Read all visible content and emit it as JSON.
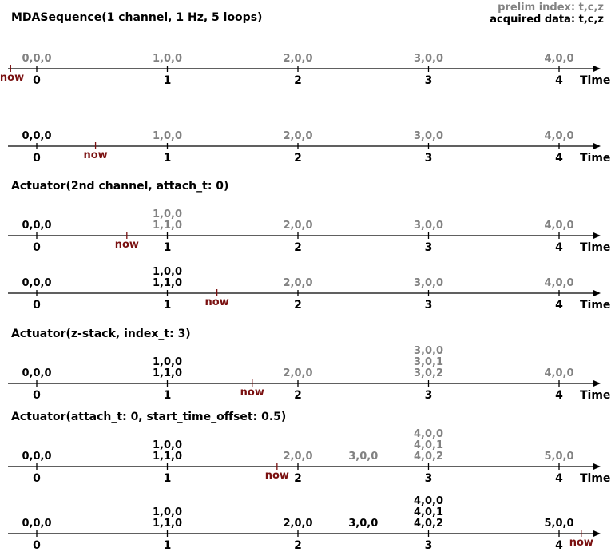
{
  "legend": {
    "prelim": "prelim index: t,c,z",
    "acquired": "acquired data: t,c,z"
  },
  "colors": {
    "prelim": "#828282",
    "acquired": "#000000",
    "now": "#7a1010",
    "axis": "#000000"
  },
  "time_label": "Time",
  "now_label": "now",
  "ticks": [
    "0",
    "1",
    "2",
    "3",
    "4"
  ],
  "rows": [
    {
      "heading": "MDASequence(1 channel, 1 Hz, 5 loops)",
      "show_time": true,
      "now": -0.2,
      "labels": [
        {
          "t": 0,
          "lines": [
            "0,0,0"
          ],
          "state": "prelim"
        },
        {
          "t": 1,
          "lines": [
            "1,0,0"
          ],
          "state": "prelim"
        },
        {
          "t": 2,
          "lines": [
            "2,0,0"
          ],
          "state": "prelim"
        },
        {
          "t": 3,
          "lines": [
            "3,0,0"
          ],
          "state": "prelim"
        },
        {
          "t": 4,
          "lines": [
            "4,0,0"
          ],
          "state": "prelim"
        }
      ]
    },
    {
      "heading": "",
      "show_time": true,
      "now": 0.45,
      "labels": [
        {
          "t": 0,
          "lines": [
            "0,0,0"
          ],
          "state": "acquired"
        },
        {
          "t": 1,
          "lines": [
            "1,0,0"
          ],
          "state": "prelim"
        },
        {
          "t": 2,
          "lines": [
            "2,0,0"
          ],
          "state": "prelim"
        },
        {
          "t": 3,
          "lines": [
            "3,0,0"
          ],
          "state": "prelim"
        },
        {
          "t": 4,
          "lines": [
            "4,0,0"
          ],
          "state": "prelim"
        }
      ]
    },
    {
      "heading": "Actuator(2nd channel, attach_t: 0)",
      "show_time": true,
      "now": 0.69,
      "labels": [
        {
          "t": 0,
          "lines": [
            "0,0,0"
          ],
          "state": "acquired"
        },
        {
          "t": 1,
          "lines": [
            "1,0,0",
            "1,1,0"
          ],
          "state": "prelim"
        },
        {
          "t": 2,
          "lines": [
            "2,0,0"
          ],
          "state": "prelim"
        },
        {
          "t": 3,
          "lines": [
            "3,0,0"
          ],
          "state": "prelim"
        },
        {
          "t": 4,
          "lines": [
            "4,0,0"
          ],
          "state": "prelim"
        }
      ]
    },
    {
      "heading": "",
      "show_time": true,
      "now": 1.38,
      "labels": [
        {
          "t": 0,
          "lines": [
            "0,0,0"
          ],
          "state": "acquired"
        },
        {
          "t": 1,
          "lines": [
            "1,0,0",
            "1,1,0"
          ],
          "state": "acquired"
        },
        {
          "t": 2,
          "lines": [
            "2,0,0"
          ],
          "state": "prelim"
        },
        {
          "t": 3,
          "lines": [
            "3,0,0"
          ],
          "state": "prelim"
        },
        {
          "t": 4,
          "lines": [
            "4,0,0"
          ],
          "state": "prelim"
        }
      ]
    },
    {
      "heading": "Actuator(z-stack, index_t: 3)",
      "show_time": true,
      "now": 1.65,
      "labels": [
        {
          "t": 0,
          "lines": [
            "0,0,0"
          ],
          "state": "acquired"
        },
        {
          "t": 1,
          "lines": [
            "1,0,0",
            "1,1,0"
          ],
          "state": "acquired"
        },
        {
          "t": 2,
          "lines": [
            "2,0,0"
          ],
          "state": "prelim"
        },
        {
          "t": 3,
          "lines": [
            "3,0,0",
            "3,0,1",
            "3,0,2"
          ],
          "state": "prelim"
        },
        {
          "t": 4,
          "lines": [
            "4,0,0"
          ],
          "state": "prelim"
        }
      ]
    },
    {
      "heading": "Actuator(attach_t: 0, start_time_offset: 0.5)",
      "show_time": true,
      "now": 1.84,
      "labels": [
        {
          "t": 0,
          "lines": [
            "0,0,0"
          ],
          "state": "acquired"
        },
        {
          "t": 1,
          "lines": [
            "1,0,0",
            "1,1,0"
          ],
          "state": "acquired"
        },
        {
          "t": 2,
          "lines": [
            "2,0,0"
          ],
          "state": "prelim"
        },
        {
          "t": 2.5,
          "lines": [
            "3,0,0"
          ],
          "state": "prelim"
        },
        {
          "t": 3,
          "lines": [
            "4,0,0",
            "4,0,1",
            "4,0,2"
          ],
          "state": "prelim"
        },
        {
          "t": 4,
          "lines": [
            "5,0,0"
          ],
          "state": "prelim"
        }
      ]
    },
    {
      "heading": "",
      "show_time": false,
      "now": 4.17,
      "labels": [
        {
          "t": 0,
          "lines": [
            "0,0,0"
          ],
          "state": "acquired"
        },
        {
          "t": 1,
          "lines": [
            "1,0,0",
            "1,1,0"
          ],
          "state": "acquired"
        },
        {
          "t": 2,
          "lines": [
            "2,0,0"
          ],
          "state": "acquired"
        },
        {
          "t": 2.5,
          "lines": [
            "3,0,0"
          ],
          "state": "acquired"
        },
        {
          "t": 3,
          "lines": [
            "4,0,0",
            "4,0,1",
            "4,0,2"
          ],
          "state": "acquired"
        },
        {
          "t": 4,
          "lines": [
            "5,0,0"
          ],
          "state": "acquired"
        }
      ]
    }
  ]
}
